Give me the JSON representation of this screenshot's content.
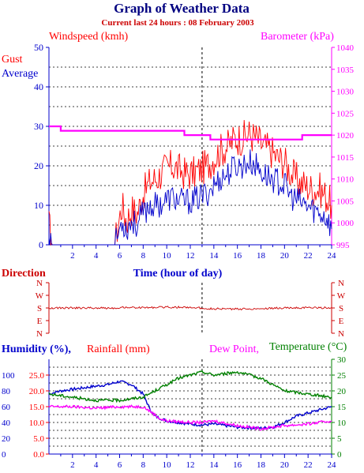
{
  "header": {
    "title": "Graph of Weather Data",
    "subtitle": "Current last 24 hours : 08 February 2003"
  },
  "colors": {
    "title": "#000080",
    "subtitle": "#cc0000",
    "gust": "#ff0000",
    "average": "#0000cc",
    "barometer": "#ff00ff",
    "direction": "#cc0000",
    "humidity": "#0000cc",
    "rainfall": "#ff0000",
    "dew_point": "#ff00ff",
    "temperature": "#008000",
    "axis_left": "#0000cc",
    "axis_right": "#ff00ff",
    "axis_time": "#0000cc"
  },
  "chart_data": [
    {
      "type": "line",
      "id": "wind",
      "ylabel_left": "Windspeed (kmh)",
      "ylabel_right": "Barometer (kPa)",
      "legend": [
        "Gust",
        "Average"
      ],
      "xlabel": "Time (hour of day)",
      "x_ticks": [
        "2",
        "4",
        "6",
        "8",
        "10",
        "12",
        "14",
        "16",
        "18",
        "20",
        "22",
        "24"
      ],
      "xlim": [
        0,
        24
      ],
      "ylim": [
        0,
        50
      ],
      "y_ticks": [
        "0",
        "10",
        "20",
        "30",
        "40",
        "50"
      ],
      "y2lim": [
        995,
        1040
      ],
      "y2_ticks": [
        "995",
        "1000",
        "1005",
        "1010",
        "1015",
        "1020",
        "1025",
        "1030",
        "1035",
        "1040"
      ],
      "grid": "dotted",
      "current_time": 13,
      "series": [
        {
          "name": "Gust",
          "points": [
            [
              0,
              5
            ],
            [
              0.3,
              0
            ],
            [
              5.6,
              0
            ],
            [
              5.8,
              4
            ],
            [
              6.2,
              10
            ],
            [
              6.6,
              6
            ],
            [
              7.0,
              9
            ],
            [
              7.5,
              8
            ],
            [
              8.0,
              13
            ],
            [
              8.6,
              16
            ],
            [
              9.2,
              17
            ],
            [
              9.8,
              19
            ],
            [
              10.5,
              20
            ],
            [
              11.0,
              19
            ],
            [
              11.6,
              18
            ],
            [
              12.2,
              18
            ],
            [
              12.8,
              19
            ],
            [
              13.4,
              20
            ],
            [
              14.0,
              22
            ],
            [
              14.6,
              24
            ],
            [
              15.2,
              25
            ],
            [
              15.8,
              27
            ],
            [
              16.4,
              27
            ],
            [
              17.0,
              28
            ],
            [
              17.6,
              27
            ],
            [
              18.2,
              25
            ],
            [
              18.8,
              24
            ],
            [
              19.4,
              22
            ],
            [
              20.0,
              21
            ],
            [
              20.6,
              18
            ],
            [
              21.2,
              16
            ],
            [
              21.8,
              15
            ],
            [
              22.4,
              14
            ],
            [
              23.0,
              14
            ],
            [
              23.6,
              12
            ],
            [
              24,
              10
            ]
          ]
        },
        {
          "name": "Average",
          "points": [
            [
              0,
              3
            ],
            [
              0.3,
              0
            ],
            [
              5.6,
              0
            ],
            [
              5.8,
              2
            ],
            [
              6.2,
              6
            ],
            [
              6.6,
              4
            ],
            [
              7.0,
              6
            ],
            [
              7.5,
              5
            ],
            [
              8.0,
              8
            ],
            [
              8.6,
              10
            ],
            [
              9.2,
              10
            ],
            [
              9.8,
              11
            ],
            [
              10.5,
              12
            ],
            [
              11.0,
              11
            ],
            [
              11.6,
              11
            ],
            [
              12.2,
              11
            ],
            [
              12.8,
              12
            ],
            [
              13.4,
              13
            ],
            [
              14.0,
              15
            ],
            [
              14.6,
              17
            ],
            [
              15.2,
              18
            ],
            [
              15.8,
              20
            ],
            [
              16.4,
              20
            ],
            [
              17.0,
              21
            ],
            [
              17.6,
              20
            ],
            [
              18.2,
              18
            ],
            [
              18.8,
              17
            ],
            [
              19.4,
              16
            ],
            [
              20.0,
              15
            ],
            [
              20.6,
              12
            ],
            [
              21.2,
              11
            ],
            [
              21.8,
              10
            ],
            [
              22.4,
              9
            ],
            [
              23.0,
              8
            ],
            [
              23.6,
              7
            ],
            [
              24,
              4
            ]
          ]
        },
        {
          "name": "Barometer",
          "axis": "right",
          "points": [
            [
              0,
              1022
            ],
            [
              1,
              1022
            ],
            [
              1,
              1021
            ],
            [
              11.5,
              1021
            ],
            [
              11.5,
              1020
            ],
            [
              13.7,
              1020
            ],
            [
              13.7,
              1019
            ],
            [
              21.5,
              1019
            ],
            [
              21.5,
              1020
            ],
            [
              24,
              1020
            ]
          ]
        }
      ]
    },
    {
      "type": "line",
      "id": "direction",
      "ylabel": "Direction",
      "y_ticks": [
        "N",
        "W",
        "S",
        "E",
        "N"
      ],
      "xlim": [
        0,
        24
      ],
      "current_time": 13,
      "series": [
        {
          "name": "Direction",
          "points": [
            [
              0,
              180
            ],
            [
              5.7,
              180
            ],
            [
              6.2,
              175
            ],
            [
              8,
              178
            ],
            [
              10,
              174
            ],
            [
              12,
              176
            ],
            [
              14,
              186
            ],
            [
              16,
              188
            ],
            [
              18,
              184
            ],
            [
              20,
              180
            ],
            [
              22,
              178
            ],
            [
              24,
              178
            ]
          ]
        }
      ]
    },
    {
      "type": "line",
      "id": "humidity",
      "ylabel_left": "Humidity (%),",
      "ylabel_rain": "Rainfall (mm)",
      "ylabel_dew": "Dew Point,",
      "ylabel_right": "Temperature (°C)",
      "x_ticks": [
        "2",
        "4",
        "6",
        "8",
        "10",
        "12",
        "14",
        "16",
        "18",
        "20",
        "22",
        "24"
      ],
      "xlim": [
        0,
        24
      ],
      "humidity_ticks": [
        "0",
        "20",
        "40",
        "60",
        "80",
        "100"
      ],
      "rain_ticks": [
        "0.0",
        "5.0",
        "10.0",
        "15.0",
        "20.0",
        "25.0"
      ],
      "temp_ticks": [
        "0",
        "5",
        "10",
        "15",
        "20",
        "25",
        "30"
      ],
      "temp_lim": [
        0,
        30
      ],
      "grid": "dotted",
      "current_time": 13,
      "series": [
        {
          "name": "Humidity",
          "color_key": "humidity",
          "points": [
            [
              0,
              19
            ],
            [
              1,
              20
            ],
            [
              3,
              21
            ],
            [
              5,
              22
            ],
            [
              6,
              23
            ],
            [
              7,
              22
            ],
            [
              8,
              19
            ],
            [
              8.6,
              14
            ],
            [
              9,
              12
            ],
            [
              10,
              10.5
            ],
            [
              12,
              9.5
            ],
            [
              13,
              9.2
            ],
            [
              14,
              9.5
            ],
            [
              16,
              8.5
            ],
            [
              18,
              8.2
            ],
            [
              19,
              8.5
            ],
            [
              20,
              10
            ],
            [
              21,
              12
            ],
            [
              22,
              13
            ],
            [
              23,
              14
            ],
            [
              24,
              15
            ]
          ]
        },
        {
          "name": "Dew Point",
          "color_key": "dew_point",
          "points": [
            [
              0,
              15
            ],
            [
              2,
              15
            ],
            [
              4,
              14.5
            ],
            [
              6,
              15
            ],
            [
              8,
              15
            ],
            [
              8.8,
              13
            ],
            [
              9.5,
              11
            ],
            [
              10,
              10.5
            ],
            [
              12,
              10
            ],
            [
              13,
              10
            ],
            [
              14,
              10.5
            ],
            [
              16,
              9
            ],
            [
              18,
              8
            ],
            [
              19,
              8.5
            ],
            [
              20,
              9
            ],
            [
              22,
              9.5
            ],
            [
              24,
              10.5
            ]
          ]
        },
        {
          "name": "Temperature",
          "color_key": "temperature",
          "points": [
            [
              0,
              19
            ],
            [
              2,
              18
            ],
            [
              4,
              17
            ],
            [
              6,
              17
            ],
            [
              8,
              18
            ],
            [
              9,
              20
            ],
            [
              10,
              22
            ],
            [
              11,
              24
            ],
            [
              12,
              25
            ],
            [
              13,
              26
            ],
            [
              14,
              25
            ],
            [
              15,
              25.5
            ],
            [
              16,
              26
            ],
            [
              17,
              25
            ],
            [
              18,
              24
            ],
            [
              19,
              22
            ],
            [
              20,
              20
            ],
            [
              21,
              19.5
            ],
            [
              22,
              19
            ],
            [
              24,
              18
            ]
          ]
        }
      ]
    }
  ]
}
